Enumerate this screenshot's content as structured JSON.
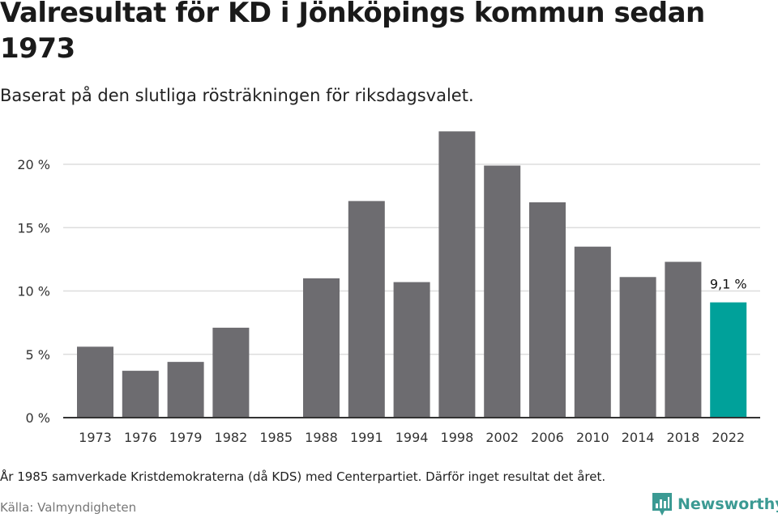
{
  "title": "Valresultat för KD i Jönköpings kommun sedan 1973",
  "subtitle": "Baserat på den slutliga rösträkningen för riksdagsvalet.",
  "note": "År 1985 samverkade Kristdemokraterna (då KDS) med Centerpartiet. Därför inget resultat det året.",
  "source": "Källa: Valmyndigheten",
  "brand": "Newsworthy",
  "colors": {
    "bar": "#6d6c70",
    "highlight": "#00a19a",
    "grid": "#dddddd",
    "axis": "#333333",
    "brand": "#3b9a93"
  },
  "chart_data": {
    "type": "bar",
    "categories": [
      "1973",
      "1976",
      "1979",
      "1982",
      "1985",
      "1988",
      "1991",
      "1994",
      "1998",
      "2002",
      "2006",
      "2010",
      "2014",
      "2018",
      "2022"
    ],
    "values": [
      5.6,
      3.7,
      4.4,
      7.1,
      null,
      11.0,
      17.1,
      10.7,
      22.6,
      19.9,
      17.0,
      13.5,
      11.1,
      12.3,
      9.1
    ],
    "highlight_category": "2022",
    "data_labels": [
      {
        "category": "2022",
        "text": "9,1 %"
      }
    ],
    "yticks": [
      {
        "value": 0,
        "label": "0 %"
      },
      {
        "value": 5,
        "label": "5 %"
      },
      {
        "value": 10,
        "label": "10 %"
      },
      {
        "value": 15,
        "label": "15 %"
      },
      {
        "value": 20,
        "label": "20 %"
      }
    ],
    "ylim": [
      0,
      23
    ],
    "grid": true
  }
}
